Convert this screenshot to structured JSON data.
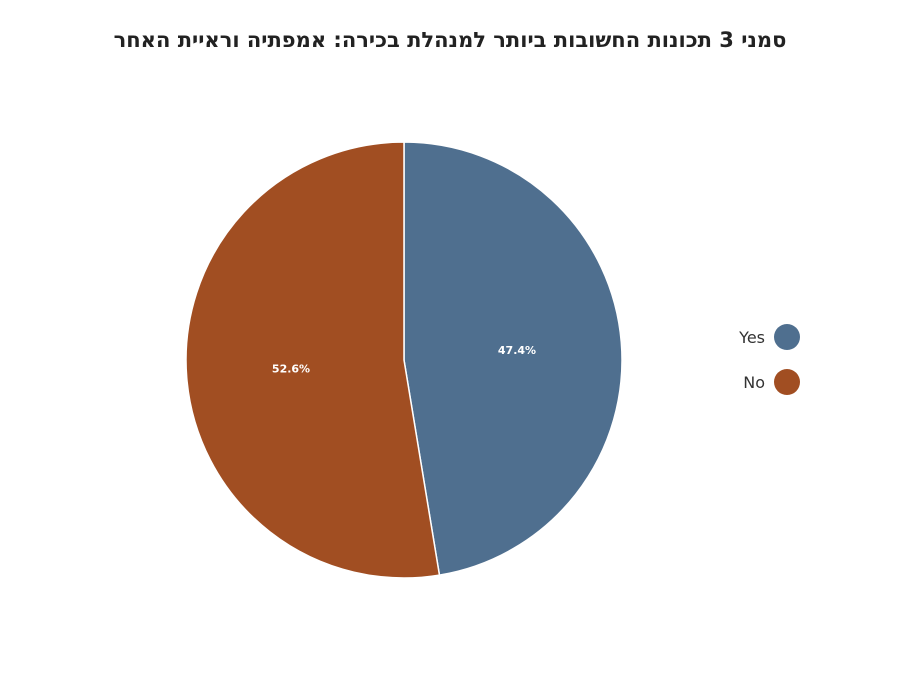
{
  "chart_data": {
    "type": "pie",
    "title": "סמני 3 תכונות החשובות ביותר למנהלת בכירה: אמפתיה וראיית האחר",
    "categories": [
      "Yes",
      "No"
    ],
    "values": [
      47.4,
      52.6
    ],
    "value_labels": [
      "47.4%",
      "52.6%"
    ],
    "colors": [
      "#4F6F8F",
      "#A14E22"
    ],
    "start_angle": "12 o'clock",
    "direction": "clockwise",
    "legend_position": "right"
  }
}
